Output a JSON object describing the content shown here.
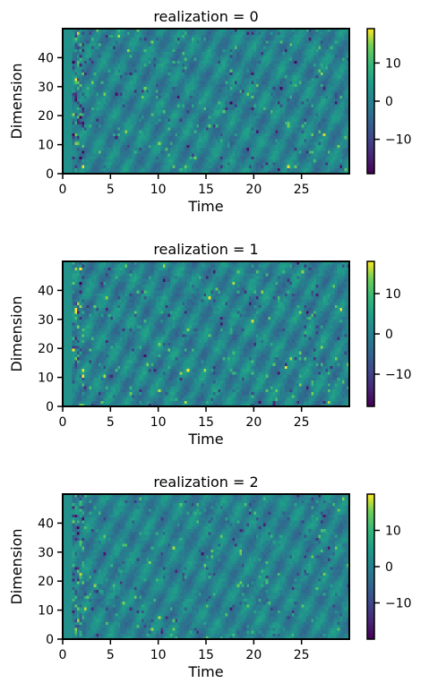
{
  "chart_data": [
    {
      "type": "heatmap",
      "title": "realization = 0",
      "xlabel": "Time",
      "ylabel": "Dimension",
      "xlim": [
        0,
        30
      ],
      "ylim": [
        0,
        50
      ],
      "x_ticks": [
        0,
        5,
        10,
        15,
        20,
        25
      ],
      "y_ticks": [
        0,
        10,
        20,
        30,
        40
      ],
      "colorbar": {
        "vmin": -19,
        "vmax": 19,
        "ticks": [
          -10,
          0,
          10
        ],
        "tick_labels": [
          "−10",
          "0",
          "10"
        ],
        "colormap": "viridis"
      }
    },
    {
      "type": "heatmap",
      "title": "realization = 1",
      "xlabel": "Time",
      "ylabel": "Dimension",
      "xlim": [
        0,
        30
      ],
      "ylim": [
        0,
        50
      ],
      "x_ticks": [
        0,
        5,
        10,
        15,
        20,
        25
      ],
      "y_ticks": [
        0,
        10,
        20,
        30,
        40
      ],
      "colorbar": {
        "vmin": -18,
        "vmax": 18,
        "ticks": [
          -10,
          0,
          10
        ],
        "tick_labels": [
          "−10",
          "0",
          "10"
        ],
        "colormap": "viridis"
      }
    },
    {
      "type": "heatmap",
      "title": "realization = 2",
      "xlabel": "Time",
      "ylabel": "Dimension",
      "xlim": [
        0,
        30
      ],
      "ylim": [
        0,
        50
      ],
      "x_ticks": [
        0,
        5,
        10,
        15,
        20,
        25
      ],
      "y_ticks": [
        0,
        10,
        20,
        30,
        40
      ],
      "colorbar": {
        "vmin": -20,
        "vmax": 20,
        "ticks": [
          -10,
          0,
          10
        ],
        "tick_labels": [
          "−10",
          "0",
          "10"
        ],
        "colormap": "viridis"
      }
    }
  ]
}
